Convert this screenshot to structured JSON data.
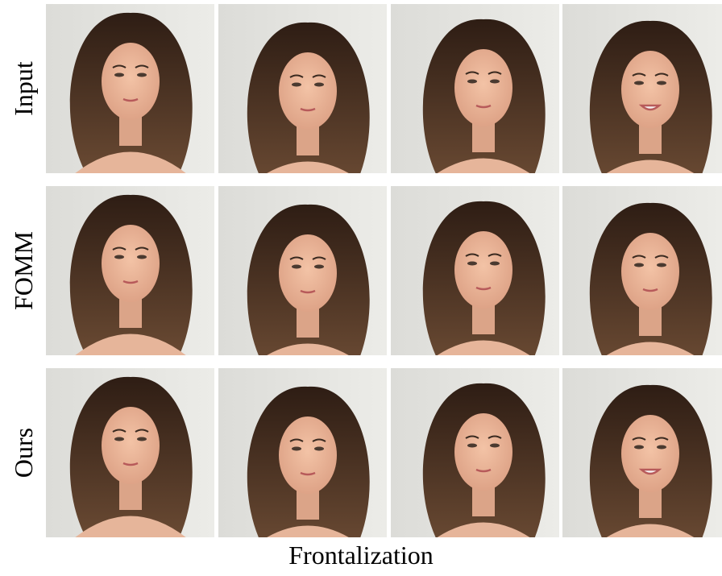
{
  "row_labels": [
    "Input",
    "FOMM",
    "Ours"
  ],
  "caption": "Frontalization"
}
